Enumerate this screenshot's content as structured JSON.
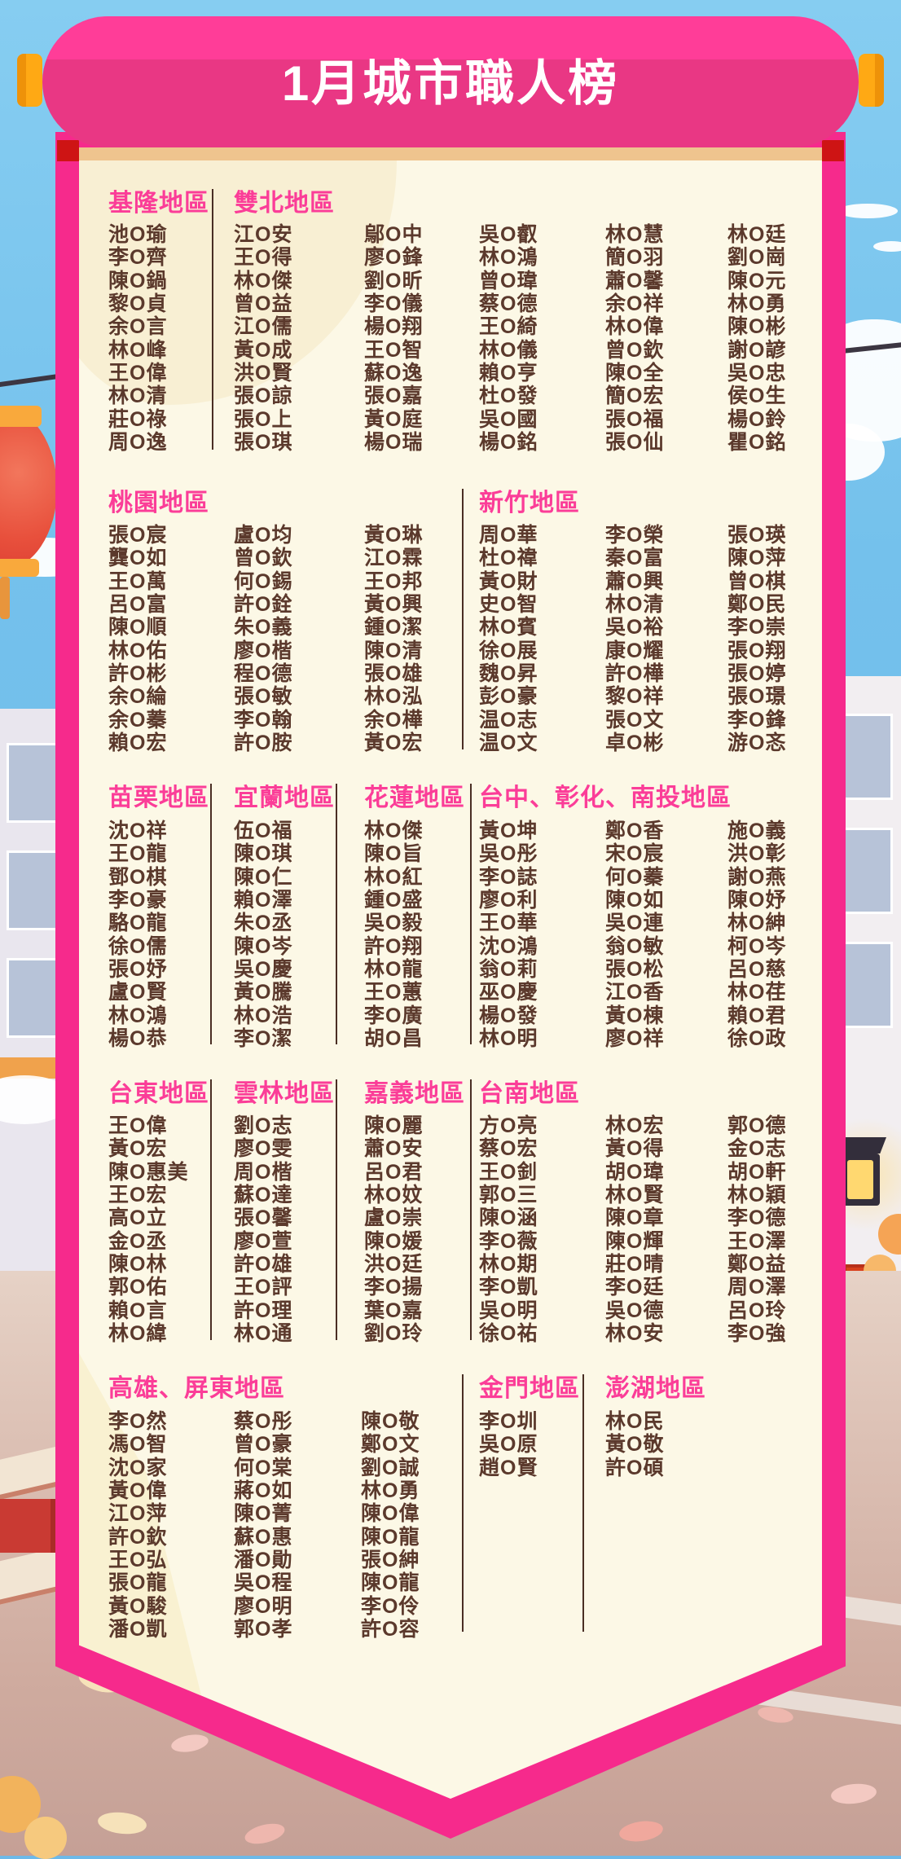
{
  "banner": {
    "title": "1月城市職人榜"
  },
  "palette": {
    "banner_pink": "#f62a8c",
    "roll_pink_top": "#ff3d98",
    "roll_pink_bottom": "#e93784",
    "rod_orange": "#ffa914",
    "fold_red": "#ce1414",
    "cream_panel": "#fcf8e6",
    "cream_strip": "#efc48e",
    "header_pink": "#fb3d98",
    "name_brown": "#5b392c",
    "sky_blue": "#74c1ec",
    "lantern_red": "#e8503c"
  },
  "sections": [
    {
      "regions": [
        {
          "label": "基隆地區",
          "columns": [
            [
              "池O瑜",
              "李O齊",
              "陳O鍋",
              "黎O貞",
              "余O言",
              "林O峰",
              "王O偉",
              "林O清",
              "莊O祿",
              "周O逸"
            ]
          ]
        },
        {
          "label": "雙北地區",
          "columns": [
            [
              "江O安",
              "王O得",
              "林O傑",
              "曾O益",
              "江O儒",
              "黃O成",
              "洪O賢",
              "張O諒",
              "張O上",
              "張O琪"
            ],
            [
              "鄔O中",
              "廖O鋒",
              "劉O昕",
              "李O儀",
              "楊O翔",
              "王O智",
              "蘇O逸",
              "張O嘉",
              "黃O庭",
              "楊O瑞"
            ],
            [
              "吳O叡",
              "林O鴻",
              "曾O瑋",
              "蔡O德",
              "王O綺",
              "林O儀",
              "賴O亨",
              "杜O發",
              "吳O國",
              "楊O銘"
            ],
            [
              "林O慧",
              "簡O羽",
              "蕭O馨",
              "余O祥",
              "林O偉",
              "曾O欽",
              "陳O全",
              "簡O宏",
              "張O福",
              "張O仙"
            ],
            [
              "林O廷",
              "劉O崗",
              "陳O元",
              "林O勇",
              "陳O彬",
              "謝O諺",
              "吳O忠",
              "侯O生",
              "楊O鈴",
              "瞿O銘"
            ]
          ]
        }
      ]
    },
    {
      "regions": [
        {
          "label": "桃園地區",
          "columns": [
            [
              "張O宸",
              "龔O如",
              "王O萬",
              "呂O富",
              "陳O順",
              "林O佑",
              "許O彬",
              "余O綸",
              "余O蓁",
              "賴O宏"
            ],
            [
              "盧O均",
              "曾O欽",
              "何O錫",
              "許O銓",
              "朱O義",
              "廖O楷",
              "程O德",
              "張O敏",
              "李O翰",
              "許O胺"
            ],
            [
              "黃O琳",
              "江O霖",
              "王O邦",
              "黃O興",
              "鍾O潔",
              "陳O清",
              "張O雄",
              "林O泓",
              "余O樺",
              "黃O宏"
            ]
          ]
        },
        {
          "label": "新竹地區",
          "columns": [
            [
              "周O華",
              "杜O禕",
              "黃O財",
              "史O智",
              "林O賓",
              "徐O展",
              "魏O昇",
              "彭O豪",
              "温O志",
              "温O文"
            ],
            [
              "李O榮",
              "秦O富",
              "蕭O興",
              "林O清",
              "吳O裕",
              "康O耀",
              "許O樺",
              "黎O祥",
              "張O文",
              "卓O彬"
            ],
            [
              "張O瑛",
              "陳O萍",
              "曾O棋",
              "鄭O民",
              "李O崇",
              "張O翔",
              "張O婷",
              "張O璟",
              "李O鋒",
              "游O忞"
            ]
          ]
        }
      ]
    },
    {
      "regions": [
        {
          "label": "苗栗地區",
          "columns": [
            [
              "沈O祥",
              "王O龍",
              "鄧O棋",
              "李O豪",
              "駱O龍",
              "徐O儒",
              "張O妤",
              "盧O賢",
              "林O鴻",
              "楊O恭"
            ]
          ]
        },
        {
          "label": "宜蘭地區",
          "columns": [
            [
              "伍O福",
              "陳O琪",
              "陳O仁",
              "賴O澤",
              "朱O丞",
              "陳O岑",
              "吳O慶",
              "黃O騰",
              "林O浩",
              "李O潔"
            ]
          ]
        },
        {
          "label": "花蓮地區",
          "columns": [
            [
              "林O傑",
              "陳O旨",
              "林O紅",
              "鍾O盛",
              "吳O毅",
              "許O翔",
              "林O龍",
              "王O蕙",
              "李O廣",
              "胡O昌"
            ]
          ]
        },
        {
          "label": "台中、彰化、南投地區",
          "columns": [
            [
              "黃O坤",
              "吳O彤",
              "李O誌",
              "廖O利",
              "王O華",
              "沈O鴻",
              "翁O莉",
              "巫O慶",
              "楊O發",
              "林O明"
            ],
            [
              "鄭O香",
              "宋O宸",
              "何O蓁",
              "陳O如",
              "吳O連",
              "翁O敏",
              "張O松",
              "江O香",
              "黃O棟",
              "廖O祥"
            ],
            [
              "施O義",
              "洪O彰",
              "謝O燕",
              "陳O妤",
              "林O紳",
              "柯O岑",
              "呂O慈",
              "林O荏",
              "賴O君",
              "徐O政"
            ]
          ]
        }
      ]
    },
    {
      "regions": [
        {
          "label": "台東地區",
          "columns": [
            [
              "王O偉",
              "黃O宏",
              "陳O惠美",
              "王O宏",
              "高O立",
              "金O丞",
              "陳O林",
              "郭O佑",
              "賴O言",
              "林O緯"
            ]
          ]
        },
        {
          "label": "雲林地區",
          "columns": [
            [
              "劉O志",
              "廖O雯",
              "周O楷",
              "蘇O達",
              "張O馨",
              "廖O萱",
              "許O雄",
              "王O評",
              "許O理",
              "林O通"
            ]
          ]
        },
        {
          "label": "嘉義地區",
          "columns": [
            [
              "陳O麗",
              "蕭O安",
              "呂O君",
              "林O妏",
              "盧O崇",
              "陳O媛",
              "洪O廷",
              "李O揚",
              "葉O嘉",
              "劉O玲"
            ]
          ]
        },
        {
          "label": "台南地區",
          "columns": [
            [
              "方O亮",
              "蔡O宏",
              "王O釗",
              "郭O三",
              "陳O涵",
              "李O薇",
              "林O期",
              "李O凱",
              "吳O明",
              "徐O祐"
            ],
            [
              "林O宏",
              "黃O得",
              "胡O瑋",
              "林O賢",
              "陳O章",
              "陳O輝",
              "莊O晴",
              "李O廷",
              "吳O德",
              "林O安"
            ],
            [
              "郭O德",
              "金O志",
              "胡O軒",
              "林O穎",
              "李O德",
              "王O澤",
              "鄭O益",
              "周O澤",
              "呂O玲",
              "李O強"
            ]
          ]
        }
      ]
    },
    {
      "regions": [
        {
          "label": "高雄、屏東地區",
          "columns": [
            [
              "李O然",
              "馮O智",
              "沈O家",
              "黃O偉",
              "江O萍",
              "許O欽",
              "王O弘",
              "張O龍",
              "黃O駿",
              "潘O凱"
            ],
            [
              "蔡O彤",
              "曾O豪",
              "何O棠",
              "蔣O如",
              "陳O菁",
              "蘇O惠",
              "潘O勛",
              "吳O程",
              "廖O明",
              "郭O孝"
            ],
            [
              "陳O敬",
              "鄭O文",
              "劉O誠",
              "林O勇",
              "陳O偉",
              "陳O龍",
              "張O紳",
              "陳O龍",
              "李O伶",
              "許O容"
            ]
          ]
        },
        {
          "label": "金門地區",
          "columns": [
            [
              "李O圳",
              "吳O原",
              "趙O賢"
            ]
          ]
        },
        {
          "label": "澎湖地區",
          "columns": [
            [
              "林O民",
              "黃O敬",
              "許O碩"
            ]
          ]
        }
      ]
    }
  ]
}
